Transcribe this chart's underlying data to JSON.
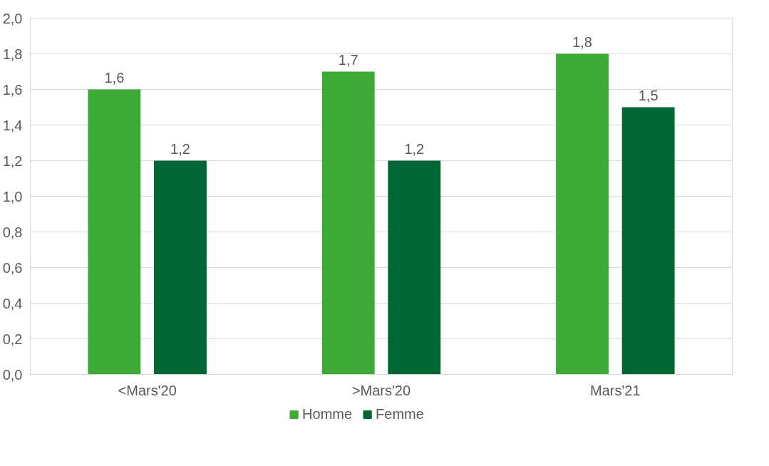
{
  "chart_data": {
    "type": "bar",
    "categories": [
      "<Mars'20",
      ">Mars'20",
      "Mars'21"
    ],
    "series": [
      {
        "name": "Homme",
        "color": "#3dab35",
        "values": [
          1.6,
          1.7,
          1.8
        ],
        "value_labels": [
          "1,6",
          "1,7",
          "1,8"
        ]
      },
      {
        "name": "Femme",
        "color": "#006633",
        "values": [
          1.2,
          1.2,
          1.5
        ],
        "value_labels": [
          "1,2",
          "1,2",
          "1,5"
        ]
      }
    ],
    "ylim": [
      0,
      2.0
    ],
    "yticks": [
      {
        "value": 0,
        "label": "0,0"
      },
      {
        "value": 0.2,
        "label": "0,2"
      },
      {
        "value": 0.4,
        "label": "0,4"
      },
      {
        "value": 0.6,
        "label": "0,6"
      },
      {
        "value": 0.8,
        "label": "0,8"
      },
      {
        "value": 1.0,
        "label": "1,0"
      },
      {
        "value": 1.2,
        "label": "1,2"
      },
      {
        "value": 1.4,
        "label": "1,4"
      },
      {
        "value": 1.6,
        "label": "1,6"
      },
      {
        "value": 1.8,
        "label": "1,8"
      },
      {
        "value": 2.0,
        "label": "2,0"
      }
    ],
    "grid": "y",
    "legend": "bottom"
  }
}
